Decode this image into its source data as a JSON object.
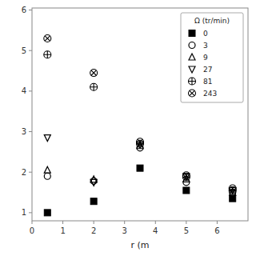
{
  "chart_data": {
    "type": "scatter",
    "xlabel": "r (m",
    "legend_title": "Ω (tr/min)",
    "legend": "upper right",
    "grid": false,
    "xlim": [
      0,
      7
    ],
    "ylim": [
      0.8,
      6.05
    ],
    "xticks": [
      0,
      1,
      2,
      3,
      4,
      5,
      6
    ],
    "yticks": [
      1,
      2,
      3,
      4,
      5,
      6
    ],
    "series": [
      {
        "name": "0",
        "color": "black",
        "marker": "square",
        "x": [
          0.5,
          2.0,
          3.5,
          5.0,
          6.5
        ],
        "values": [
          1.0,
          1.28,
          2.1,
          1.55,
          1.35
        ]
      },
      {
        "name": "3",
        "color": "black",
        "marker": "circle-open",
        "x": [
          0.5,
          2.0,
          3.5,
          5.0,
          6.5
        ],
        "values": [
          1.9,
          1.78,
          2.6,
          1.75,
          1.5
        ]
      },
      {
        "name": "9",
        "color": "black",
        "marker": "triangle-up-open",
        "x": [
          0.5,
          2.0,
          3.5,
          5.0,
          6.5
        ],
        "values": [
          2.05,
          1.82,
          2.65,
          1.83,
          1.5
        ]
      },
      {
        "name": "27",
        "color": "black",
        "marker": "triangle-down-open",
        "x": [
          0.5,
          2.0,
          3.5,
          5.0,
          6.5
        ],
        "values": [
          2.85,
          1.75,
          2.68,
          1.9,
          1.55
        ]
      },
      {
        "name": "81",
        "color": "black",
        "marker": "circle-plus",
        "x": [
          0.5,
          2.0,
          3.5,
          5.0,
          6.5
        ],
        "values": [
          4.9,
          4.1,
          2.7,
          1.88,
          1.55
        ]
      },
      {
        "name": "243",
        "color": "black",
        "marker": "circle-cross",
        "x": [
          0.5,
          2.0,
          3.5,
          5.0,
          6.5
        ],
        "values": [
          5.3,
          4.45,
          2.75,
          1.92,
          1.6
        ]
      }
    ]
  }
}
